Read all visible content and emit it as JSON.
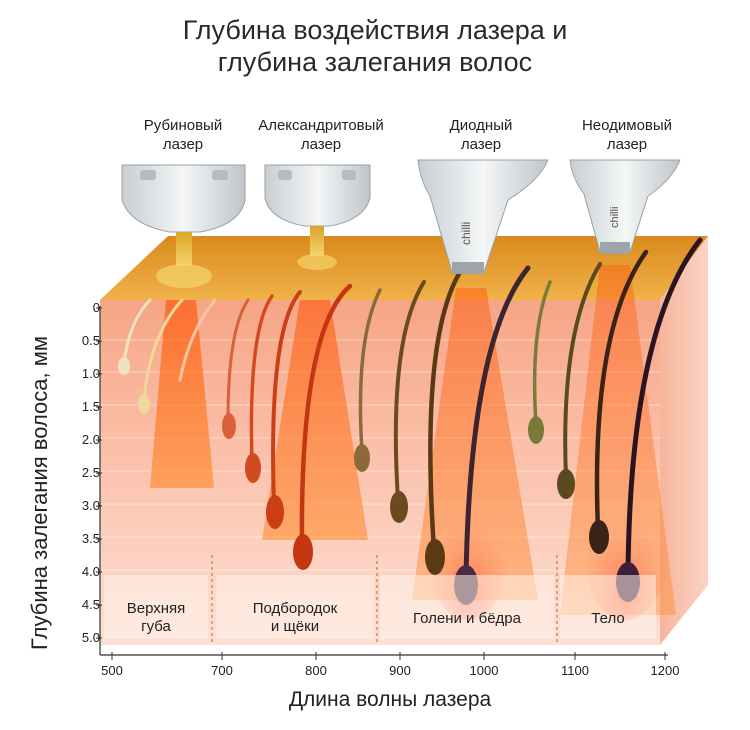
{
  "title": {
    "line1": "Глубина воздействия лазера и",
    "line2": "глубина залегания волос"
  },
  "lasers": [
    {
      "line1": "Рубиновый",
      "line2": "лазер"
    },
    {
      "line1": "Александритовый",
      "line2": "лазер"
    },
    {
      "line1": "Диодный",
      "line2": "лазер"
    },
    {
      "line1": "Неодимовый",
      "line2": "лазер"
    }
  ],
  "device_brand_text": "chilli",
  "regions": [
    {
      "line1": "Верхняя",
      "line2": "губа"
    },
    {
      "line1": "Подбородок",
      "line2": "и щёки"
    },
    {
      "line1": "Голени и бёдра",
      "line2": ""
    },
    {
      "line1": "Тело",
      "line2": ""
    }
  ],
  "chart_data": {
    "type": "diagram",
    "ylabel": "Глубина залегания волоса, мм",
    "xlabel": "Длина волны лазера",
    "y_ticks": [
      "0",
      "0.5",
      "1.0",
      "1.5",
      "2.0",
      "2.5",
      "3.0",
      "3.5",
      "4.0",
      "4.5",
      "5.0"
    ],
    "x_ticks": [
      "500",
      "700",
      "800",
      "900",
      "1000",
      "1100",
      "1200"
    ],
    "colors": {
      "skin_top": "#e9a23a",
      "skin_body": "#f7b9a3",
      "beam": "#ff6a1c",
      "hair_light": "#e8d9b0",
      "hair_red": "#d2401a",
      "hair_brown": "#6b4a20",
      "hair_dark": "#2a1424"
    }
  }
}
